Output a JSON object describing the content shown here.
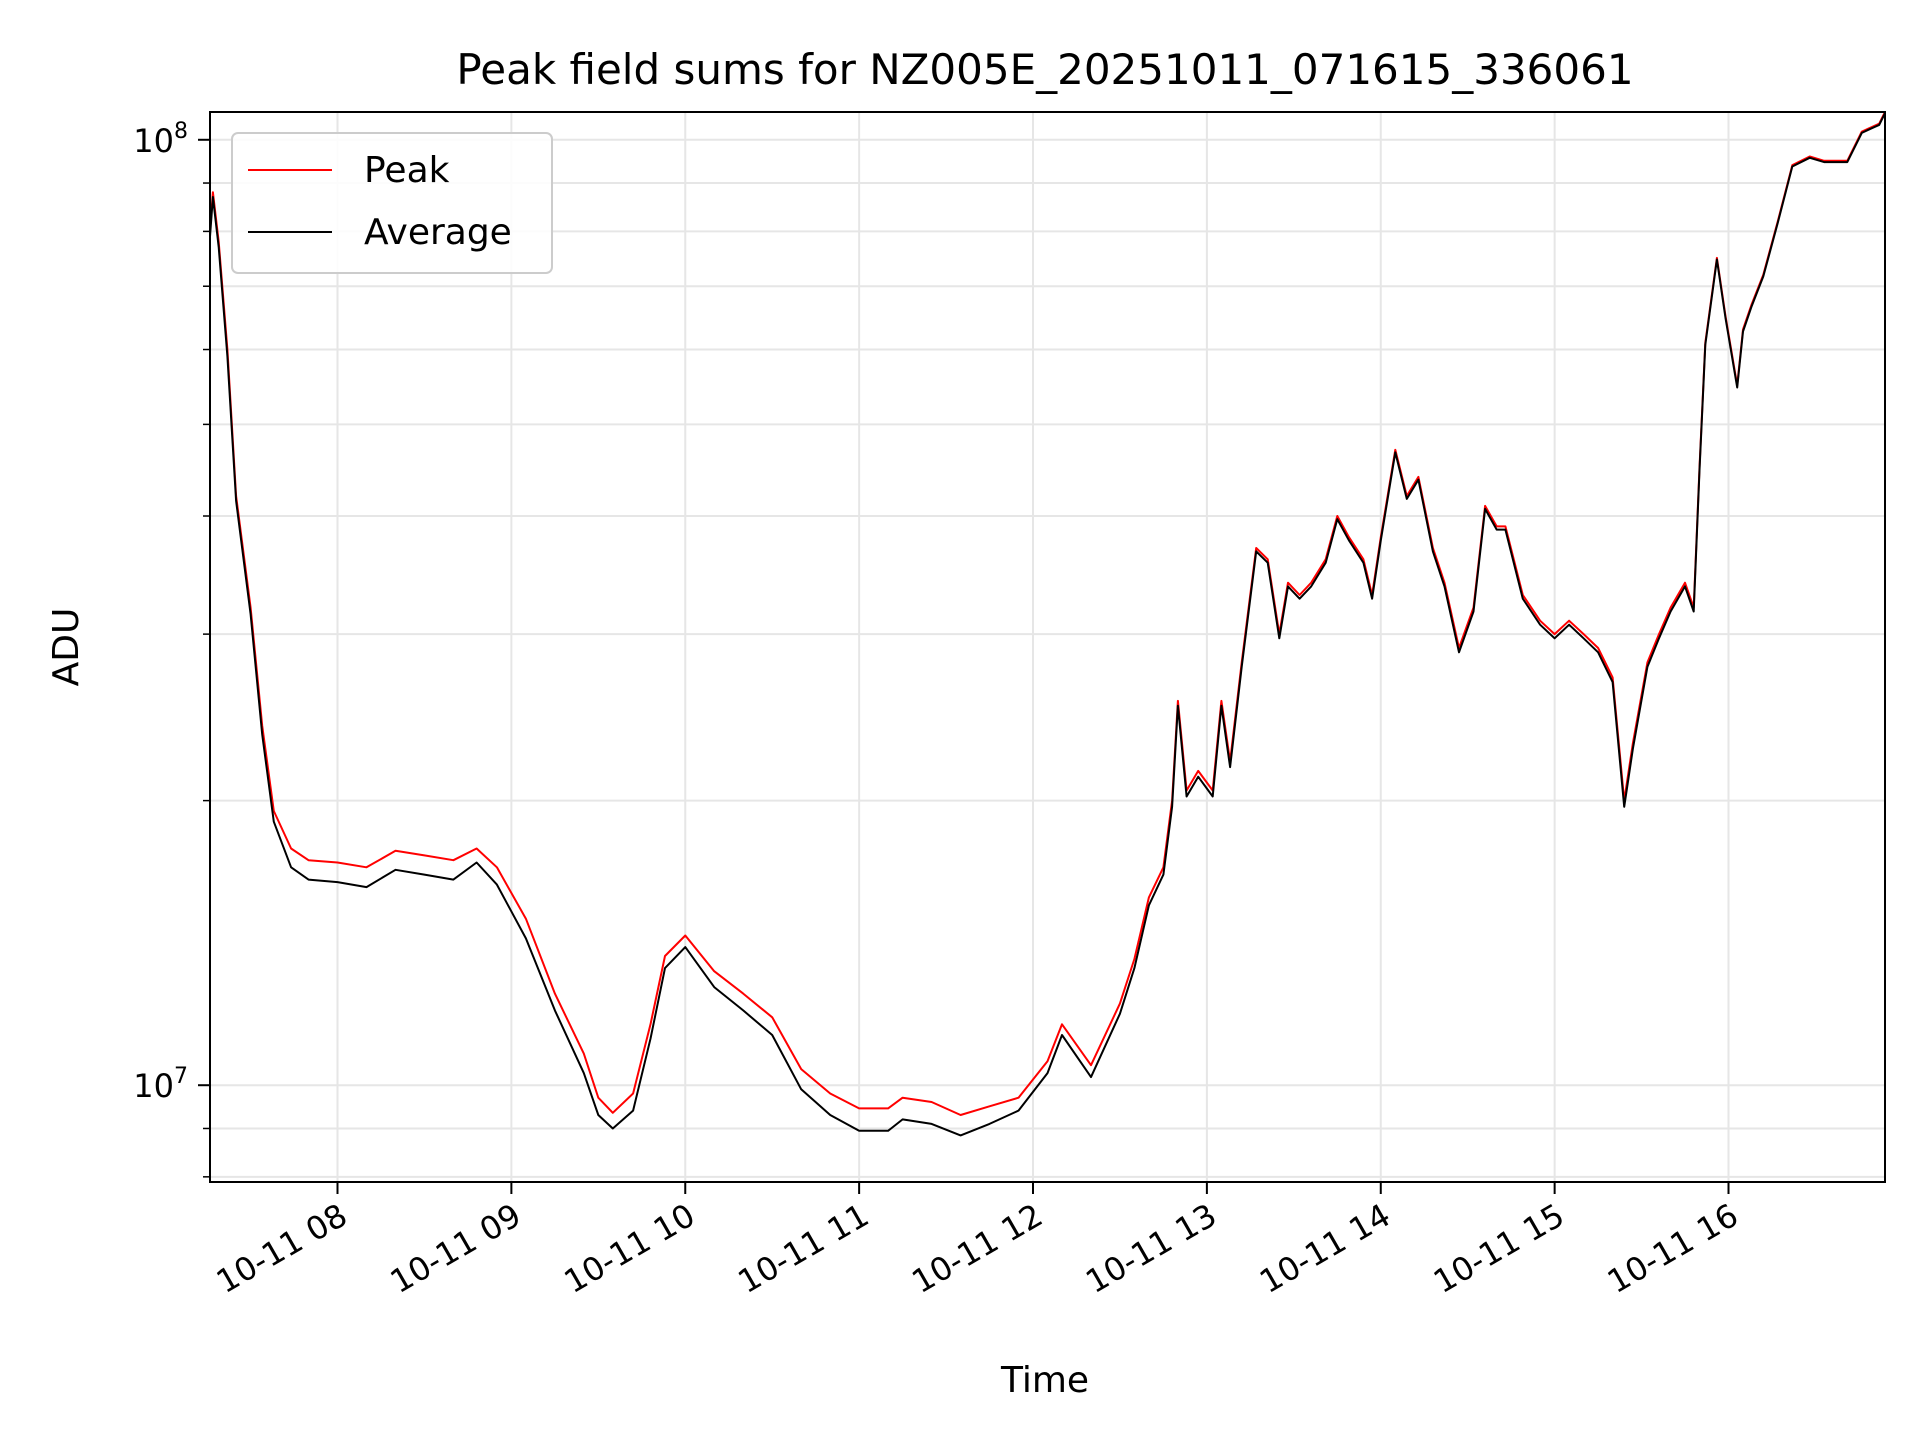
{
  "chart_data": {
    "type": "line",
    "title": "Peak field sums for NZ005E_20251011_071615_336061",
    "xlabel": "Time",
    "ylabel": "ADU",
    "y_scale": "log",
    "ylim": [
      7900000,
      107000000
    ],
    "xlim": [
      "2025-10-11 07:16",
      "2025-10-11 16:54"
    ],
    "grid": true,
    "legend_position": "upper-left",
    "x_ticks": [
      {
        "t": "2025-10-11 08:00",
        "label": "10-11 08"
      },
      {
        "t": "2025-10-11 09:00",
        "label": "10-11 09"
      },
      {
        "t": "2025-10-11 10:00",
        "label": "10-11 10"
      },
      {
        "t": "2025-10-11 11:00",
        "label": "10-11 11"
      },
      {
        "t": "2025-10-11 12:00",
        "label": "10-11 12"
      },
      {
        "t": "2025-10-11 13:00",
        "label": "10-11 13"
      },
      {
        "t": "2025-10-11 14:00",
        "label": "10-11 14"
      },
      {
        "t": "2025-10-11 15:00",
        "label": "10-11 15"
      },
      {
        "t": "2025-10-11 16:00",
        "label": "10-11 16"
      }
    ],
    "y_major_ticks": [
      {
        "value": 10000000,
        "base": "10",
        "exp": "7"
      },
      {
        "value": 100000000,
        "base": "10",
        "exp": "8"
      }
    ],
    "y_minor_ticks": [
      8000000,
      9000000,
      20000000,
      30000000,
      40000000,
      50000000,
      60000000,
      70000000,
      80000000,
      90000000
    ],
    "series": [
      {
        "name": "Peak",
        "color": "#ff0000",
        "x": [
          "2025-10-11 07:16",
          "2025-10-11 07:17",
          "2025-10-11 07:19",
          "2025-10-11 07:22",
          "2025-10-11 07:25",
          "2025-10-11 07:30",
          "2025-10-11 07:34",
          "2025-10-11 07:38",
          "2025-10-11 07:44",
          "2025-10-11 07:50",
          "2025-10-11 08:00",
          "2025-10-11 08:10",
          "2025-10-11 08:20",
          "2025-10-11 08:30",
          "2025-10-11 08:40",
          "2025-10-11 08:48",
          "2025-10-11 08:55",
          "2025-10-11 09:05",
          "2025-10-11 09:15",
          "2025-10-11 09:25",
          "2025-10-11 09:30",
          "2025-10-11 09:35",
          "2025-10-11 09:42",
          "2025-10-11 09:48",
          "2025-10-11 09:53",
          "2025-10-11 10:00",
          "2025-10-11 10:10",
          "2025-10-11 10:20",
          "2025-10-11 10:30",
          "2025-10-11 10:40",
          "2025-10-11 10:50",
          "2025-10-11 11:00",
          "2025-10-11 11:10",
          "2025-10-11 11:15",
          "2025-10-11 11:25",
          "2025-10-11 11:35",
          "2025-10-11 11:45",
          "2025-10-11 11:55",
          "2025-10-11 12:05",
          "2025-10-11 12:10",
          "2025-10-11 12:20",
          "2025-10-11 12:30",
          "2025-10-11 12:35",
          "2025-10-11 12:40",
          "2025-10-11 12:45",
          "2025-10-11 12:48",
          "2025-10-11 12:50",
          "2025-10-11 12:53",
          "2025-10-11 12:57",
          "2025-10-11 13:02",
          "2025-10-11 13:05",
          "2025-10-11 13:08",
          "2025-10-11 13:12",
          "2025-10-11 13:17",
          "2025-10-11 13:21",
          "2025-10-11 13:25",
          "2025-10-11 13:28",
          "2025-10-11 13:32",
          "2025-10-11 13:36",
          "2025-10-11 13:41",
          "2025-10-11 13:45",
          "2025-10-11 13:49",
          "2025-10-11 13:54",
          "2025-10-11 13:57",
          "2025-10-11 14:00",
          "2025-10-11 14:05",
          "2025-10-11 14:09",
          "2025-10-11 14:13",
          "2025-10-11 14:18",
          "2025-10-11 14:22",
          "2025-10-11 14:27",
          "2025-10-11 14:32",
          "2025-10-11 14:36",
          "2025-10-11 14:40",
          "2025-10-11 14:43",
          "2025-10-11 14:49",
          "2025-10-11 14:55",
          "2025-10-11 15:00",
          "2025-10-11 15:05",
          "2025-10-11 15:10",
          "2025-10-11 15:15",
          "2025-10-11 15:20",
          "2025-10-11 15:24",
          "2025-10-11 15:27",
          "2025-10-11 15:32",
          "2025-10-11 15:36",
          "2025-10-11 15:40",
          "2025-10-11 15:45",
          "2025-10-11 15:48",
          "2025-10-11 15:50",
          "2025-10-11 15:52",
          "2025-10-11 15:56",
          "2025-10-11 15:59",
          "2025-10-11 16:03",
          "2025-10-11 16:05",
          "2025-10-11 16:08",
          "2025-10-11 16:12",
          "2025-10-11 16:17",
          "2025-10-11 16:22",
          "2025-10-11 16:28",
          "2025-10-11 16:33",
          "2025-10-11 16:41",
          "2025-10-11 16:46",
          "2025-10-11 16:49",
          "2025-10-11 16:52",
          "2025-10-11 16:54"
        ],
        "values": [
          80000000,
          88000000,
          78000000,
          60000000,
          42000000,
          32000000,
          24000000,
          19500000,
          17800000,
          17300000,
          17200000,
          17000000,
          17700000,
          17500000,
          17300000,
          17800000,
          17000000,
          15000000,
          12500000,
          10800000,
          9700000,
          9350000,
          9800000,
          11600000,
          13700000,
          14400000,
          13200000,
          12500000,
          11800000,
          10400000,
          9800000,
          9450000,
          9450000,
          9700000,
          9600000,
          9300000,
          9500000,
          9700000,
          10600000,
          11600000,
          10500000,
          12200000,
          13600000,
          15800000,
          17000000,
          20000000,
          25500000,
          20500000,
          21500000,
          20500000,
          25500000,
          22000000,
          28000000,
          37000000,
          36000000,
          30000000,
          34000000,
          33000000,
          34000000,
          36000000,
          40000000,
          38000000,
          36000000,
          33000000,
          38000000,
          47000000,
          42000000,
          44000000,
          37000000,
          34000000,
          29000000,
          32000000,
          41000000,
          39000000,
          39000000,
          33000000,
          31000000,
          30000000,
          31000000,
          30000000,
          29000000,
          27000000,
          20000000,
          23000000,
          28000000,
          30000000,
          32000000,
          34000000,
          32000000,
          45000000,
          61000000,
          75000000,
          65000000,
          55000000,
          63000000,
          67000000,
          72000000,
          82000000,
          94000000,
          96000000,
          95000000,
          95000000,
          102000000,
          103000000,
          104000000,
          107000000
        ]
      },
      {
        "name": "Average",
        "color": "#000000",
        "x": [
          "2025-10-11 07:16",
          "2025-10-11 07:17",
          "2025-10-11 07:19",
          "2025-10-11 07:22",
          "2025-10-11 07:25",
          "2025-10-11 07:30",
          "2025-10-11 07:34",
          "2025-10-11 07:38",
          "2025-10-11 07:44",
          "2025-10-11 07:50",
          "2025-10-11 08:00",
          "2025-10-11 08:10",
          "2025-10-11 08:20",
          "2025-10-11 08:30",
          "2025-10-11 08:40",
          "2025-10-11 08:48",
          "2025-10-11 08:55",
          "2025-10-11 09:05",
          "2025-10-11 09:15",
          "2025-10-11 09:25",
          "2025-10-11 09:30",
          "2025-10-11 09:35",
          "2025-10-11 09:42",
          "2025-10-11 09:48",
          "2025-10-11 09:53",
          "2025-10-11 10:00",
          "2025-10-11 10:10",
          "2025-10-11 10:20",
          "2025-10-11 10:30",
          "2025-10-11 10:40",
          "2025-10-11 10:50",
          "2025-10-11 11:00",
          "2025-10-11 11:10",
          "2025-10-11 11:15",
          "2025-10-11 11:25",
          "2025-10-11 11:35",
          "2025-10-11 11:45",
          "2025-10-11 11:55",
          "2025-10-11 12:05",
          "2025-10-11 12:10",
          "2025-10-11 12:20",
          "2025-10-11 12:30",
          "2025-10-11 12:35",
          "2025-10-11 12:40",
          "2025-10-11 12:45",
          "2025-10-11 12:48",
          "2025-10-11 12:50",
          "2025-10-11 12:53",
          "2025-10-11 12:57",
          "2025-10-11 13:02",
          "2025-10-11 13:05",
          "2025-10-11 13:08",
          "2025-10-11 13:12",
          "2025-10-11 13:17",
          "2025-10-11 13:21",
          "2025-10-11 13:25",
          "2025-10-11 13:28",
          "2025-10-11 13:32",
          "2025-10-11 13:36",
          "2025-10-11 13:41",
          "2025-10-11 13:45",
          "2025-10-11 13:49",
          "2025-10-11 13:54",
          "2025-10-11 13:57",
          "2025-10-11 14:00",
          "2025-10-11 14:05",
          "2025-10-11 14:09",
          "2025-10-11 14:13",
          "2025-10-11 14:18",
          "2025-10-11 14:22",
          "2025-10-11 14:27",
          "2025-10-11 14:32",
          "2025-10-11 14:36",
          "2025-10-11 14:40",
          "2025-10-11 14:43",
          "2025-10-11 14:49",
          "2025-10-11 14:55",
          "2025-10-11 15:00",
          "2025-10-11 15:05",
          "2025-10-11 15:10",
          "2025-10-11 15:15",
          "2025-10-11 15:20",
          "2025-10-11 15:24",
          "2025-10-11 15:27",
          "2025-10-11 15:32",
          "2025-10-11 15:36",
          "2025-10-11 15:40",
          "2025-10-11 15:45",
          "2025-10-11 15:48",
          "2025-10-11 15:50",
          "2025-10-11 15:52",
          "2025-10-11 15:56",
          "2025-10-11 15:59",
          "2025-10-11 16:03",
          "2025-10-11 16:05",
          "2025-10-11 16:08",
          "2025-10-11 16:12",
          "2025-10-11 16:17",
          "2025-10-11 16:22",
          "2025-10-11 16:28",
          "2025-10-11 16:33",
          "2025-10-11 16:41",
          "2025-10-11 16:46",
          "2025-10-11 16:49",
          "2025-10-11 16:52",
          "2025-10-11 16:54"
        ],
        "values": [
          79000000,
          87000000,
          77000000,
          59000000,
          41500000,
          31500000,
          23500000,
          19000000,
          17000000,
          16500000,
          16400000,
          16200000,
          16900000,
          16700000,
          16500000,
          17200000,
          16300000,
          14300000,
          12000000,
          10300000,
          9300000,
          9000000,
          9400000,
          11200000,
          13300000,
          14000000,
          12700000,
          12000000,
          11300000,
          9900000,
          9300000,
          8950000,
          8950000,
          9200000,
          9100000,
          8850000,
          9100000,
          9400000,
          10300000,
          11300000,
          10200000,
          11900000,
          13300000,
          15500000,
          16700000,
          19700000,
          25200000,
          20200000,
          21200000,
          20200000,
          25200000,
          21700000,
          27700000,
          36700000,
          35700000,
          29700000,
          33700000,
          32700000,
          33700000,
          35700000,
          39700000,
          37700000,
          35700000,
          32700000,
          37700000,
          46700000,
          41700000,
          43700000,
          36700000,
          33700000,
          28700000,
          31700000,
          40700000,
          38700000,
          38700000,
          32700000,
          30700000,
          29700000,
          30700000,
          29700000,
          28700000,
          26700000,
          19700000,
          22700000,
          27700000,
          29700000,
          31700000,
          33700000,
          31700000,
          44700000,
          60700000,
          74700000,
          64700000,
          54700000,
          62700000,
          66700000,
          71700000,
          81700000,
          93700000,
          95700000,
          94700000,
          94700000,
          101700000,
          102700000,
          103700000,
          106700000
        ]
      }
    ]
  }
}
